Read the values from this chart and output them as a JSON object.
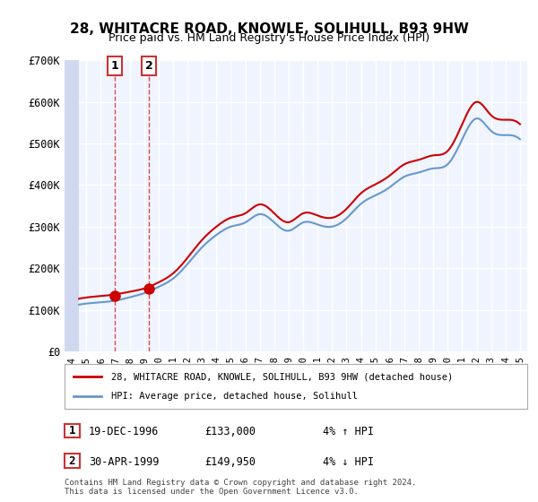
{
  "title": "28, WHITACRE ROAD, KNOWLE, SOLIHULL, B93 9HW",
  "subtitle": "Price paid vs. HM Land Registry's House Price Index (HPI)",
  "ylabel": "",
  "ylim": [
    0,
    700000
  ],
  "yticks": [
    0,
    100000,
    200000,
    300000,
    400000,
    500000,
    600000,
    700000
  ],
  "ytick_labels": [
    "£0",
    "£100K",
    "£200K",
    "£300K",
    "£400K",
    "£500K",
    "£600K",
    "£700K"
  ],
  "background_color": "#ffffff",
  "plot_bg_color": "#f0f4ff",
  "hatch_color": "#d0d8f0",
  "grid_color": "#ffffff",
  "sale1_date": 1996.96,
  "sale1_price": 133000,
  "sale1_label": "1",
  "sale2_date": 1999.33,
  "sale2_price": 149950,
  "sale2_label": "2",
  "sale1_text": "19-DEC-1996",
  "sale1_amount": "£133,000",
  "sale1_hpi": "4% ↑ HPI",
  "sale2_text": "30-APR-1999",
  "sale2_amount": "£149,950",
  "sale2_hpi": "4% ↓ HPI",
  "legend_line1": "28, WHITACRE ROAD, KNOWLE, SOLIHULL, B93 9HW (detached house)",
  "legend_line2": "HPI: Average price, detached house, Solihull",
  "footer": "Contains HM Land Registry data © Crown copyright and database right 2024.\nThis data is licensed under the Open Government Licence v3.0.",
  "line_color_red": "#cc0000",
  "line_color_blue": "#6699cc",
  "dot_color": "#cc0000",
  "xlim_start": 1993.5,
  "xlim_end": 2025.5
}
